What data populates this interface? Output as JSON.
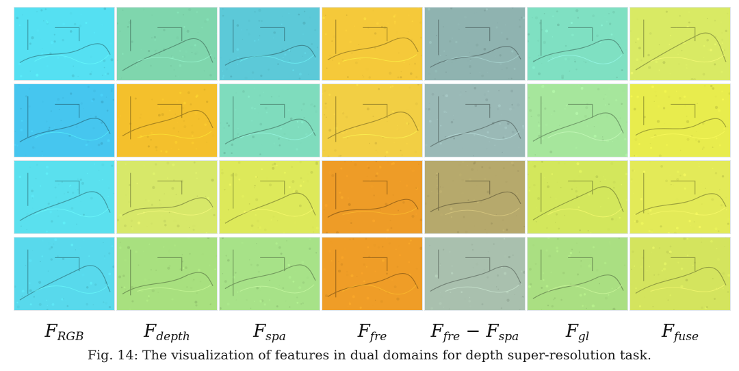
{
  "columns": [
    {
      "label": "F",
      "sub": "RGB"
    },
    {
      "label": "F",
      "sub": "depth"
    },
    {
      "label": "F",
      "sub": "spa"
    },
    {
      "label": "F",
      "sub": "fre"
    },
    {
      "label": "F",
      "sub": "fre",
      "minus": " − F",
      "sub2": "spa"
    },
    {
      "label": "F",
      "sub": "gl"
    },
    {
      "label": "F",
      "sub": "fuse"
    }
  ],
  "tile_colors": [
    [
      "#55e0f2",
      "#7fd6ad",
      "#5cc9d8",
      "#f5c93a",
      "#8fb3b0",
      "#7fe0c2",
      "#d9ea64"
    ],
    [
      "#46c6ef",
      "#f4c02c",
      "#7fdcbd",
      "#f2cf44",
      "#9ab9b6",
      "#a6e69c",
      "#e8ec4d"
    ],
    [
      "#5ae0ee",
      "#d7e869",
      "#dde95a",
      "#ee9c27",
      "#b6a96c",
      "#d3e75c",
      "#e3ea58"
    ],
    [
      "#58d9ec",
      "#a8e07f",
      "#a7e288",
      "#ef9d27",
      "#a9c0ae",
      "#aadf82",
      "#d4e45e"
    ]
  ],
  "caption": "Fig. 14: The visualization of features in dual domains for depth super-resolution task."
}
